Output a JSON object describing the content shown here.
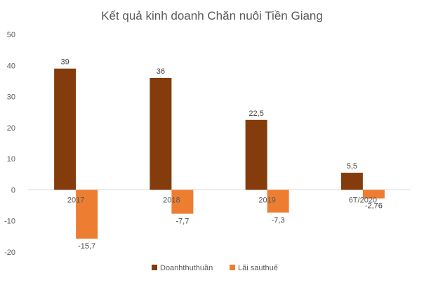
{
  "chart_data": {
    "type": "bar",
    "title": "Kết quả kinh doanh Chăn nuôi Tiền Giang",
    "categories": [
      "2017",
      "2018",
      "2019",
      "6T/2020"
    ],
    "series": [
      {
        "name": "Doanhthuthuần",
        "values": [
          39,
          36,
          22.5,
          5.5
        ],
        "labels": [
          "39",
          "36",
          "22,5",
          "5,5"
        ],
        "color": "#843C0C"
      },
      {
        "name": "Lãi sauthuế",
        "values": [
          -15.7,
          -7.7,
          -7.3,
          -2.76
        ],
        "labels": [
          "-15,7",
          "-7,7",
          "-7,3",
          "-2,76"
        ],
        "color": "#ED7D31"
      }
    ],
    "ylim": [
      -20,
      50
    ],
    "yticks": [
      "-20",
      "-10",
      "0",
      "10",
      "20",
      "30",
      "40",
      "50"
    ],
    "xlabel": "",
    "ylabel": "",
    "grid": false,
    "legend": "bottom"
  }
}
